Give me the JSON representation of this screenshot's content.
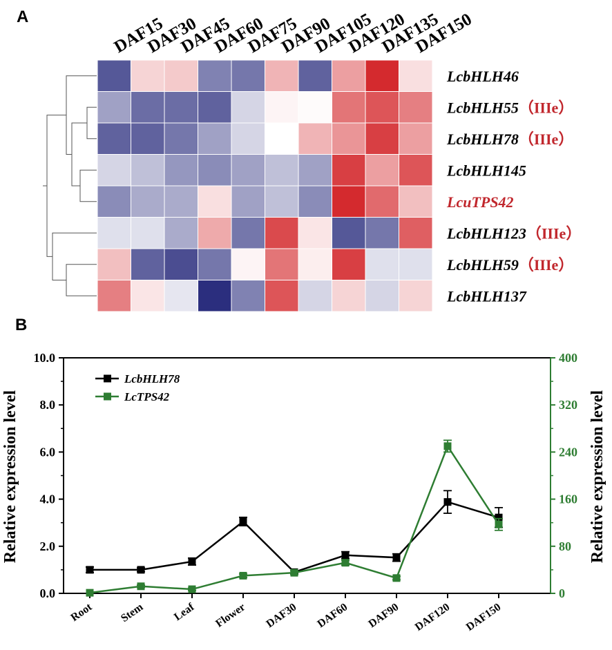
{
  "chart_data": [
    {
      "panel": "A",
      "type": "heatmap",
      "title": "",
      "columns": [
        "DAF15",
        "DAF30",
        "DAF45",
        "DAF60",
        "DAF75",
        "DAF90",
        "DAF105",
        "DAF120",
        "DAF135",
        "DAF150"
      ],
      "rows": [
        {
          "gene": "LcbHLH46",
          "note": "",
          "highlight": false,
          "values": [
            -0.8,
            0.2,
            0.25,
            -0.6,
            -0.65,
            0.35,
            -0.75,
            0.45,
            1.0,
            0.15
          ]
        },
        {
          "gene": "LcbHLH55",
          "note": "（IIIe）",
          "highlight": false,
          "values": [
            -0.45,
            -0.7,
            -0.7,
            -0.75,
            -0.2,
            0.05,
            0.02,
            0.65,
            0.8,
            0.6
          ]
        },
        {
          "gene": "LcbHLH78",
          "note": "（IIIe）",
          "highlight": false,
          "values": [
            -0.75,
            -0.75,
            -0.65,
            -0.45,
            -0.2,
            0.0,
            0.35,
            0.5,
            0.9,
            0.45
          ]
        },
        {
          "gene": "LcbHLH145",
          "note": "",
          "highlight": false,
          "values": [
            -0.2,
            -0.3,
            -0.5,
            -0.55,
            -0.45,
            -0.3,
            -0.45,
            0.9,
            0.45,
            0.8
          ]
        },
        {
          "gene": "LcuTPS42",
          "note": "",
          "highlight": true,
          "values": [
            -0.55,
            -0.4,
            -0.4,
            0.15,
            -0.45,
            -0.3,
            -0.55,
            1.0,
            0.7,
            0.3
          ]
        },
        {
          "gene": "LcbHLH123",
          "note": "（IIIe）",
          "highlight": false,
          "values": [
            -0.15,
            -0.15,
            -0.4,
            0.4,
            -0.65,
            0.85,
            0.12,
            -0.8,
            -0.65,
            0.75
          ]
        },
        {
          "gene": "LcbHLH59",
          "note": "（IIIe）",
          "highlight": false,
          "values": [
            0.3,
            -0.75,
            -0.85,
            -0.65,
            0.05,
            0.65,
            0.08,
            0.9,
            -0.15,
            -0.15
          ]
        },
        {
          "gene": "LcbHLH137",
          "note": "",
          "highlight": false,
          "values": [
            0.6,
            0.12,
            -0.12,
            -1.0,
            -0.6,
            0.8,
            -0.2,
            0.2,
            -0.2,
            0.2
          ]
        }
      ],
      "color_scale": {
        "low": "#2b2e7e",
        "mid": "#ffffff",
        "high": "#d42a2e"
      },
      "dendrogram": "rows"
    },
    {
      "panel": "B",
      "type": "line",
      "categories": [
        "Root",
        "Stem",
        "Leaf",
        "Flower",
        "DAF30",
        "DAF60",
        "DAF90",
        "DAF120",
        "DAF150"
      ],
      "xlabel": "",
      "ylabel": "Relative expression level",
      "y2label": "Relative expression level",
      "ylim": [
        0,
        10
      ],
      "y2lim": [
        0,
        400
      ],
      "yticks": [
        "0.0",
        "2.0",
        "4.0",
        "6.0",
        "8.0",
        "10.0"
      ],
      "y2ticks": [
        "0",
        "80",
        "160",
        "240",
        "320",
        "400"
      ],
      "legend_position": "top-left",
      "series": [
        {
          "name": "LcbHLH78",
          "axis": "left",
          "color": "#000000",
          "values": [
            1.0,
            1.0,
            1.35,
            3.05,
            0.9,
            1.62,
            1.52,
            3.88,
            3.22
          ],
          "errors": [
            0.12,
            0.08,
            0.15,
            0.18,
            0.06,
            0.15,
            0.16,
            0.48,
            0.42
          ]
        },
        {
          "name": "LcTPS42",
          "axis": "right",
          "color": "#2e7d32",
          "values": [
            1,
            12,
            7,
            30,
            35,
            52,
            26,
            250,
            117
          ],
          "errors": [
            0,
            2,
            2,
            3,
            3,
            4,
            3,
            10,
            10
          ]
        }
      ]
    }
  ]
}
